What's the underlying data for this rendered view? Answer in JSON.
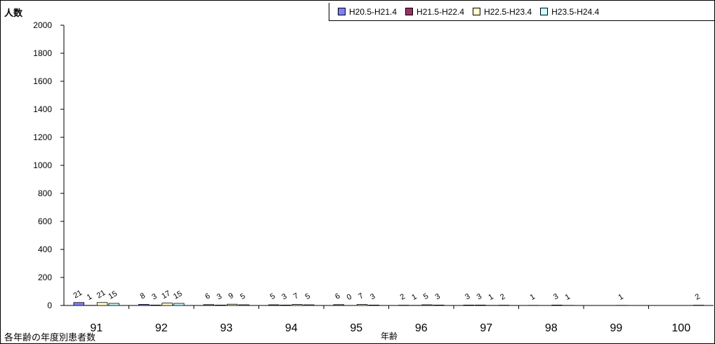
{
  "chart_data": {
    "type": "bar",
    "title": "",
    "ylabel": "人数",
    "xlabel": "年齢",
    "caption": "各年齢の年度別患者数",
    "ylim": [
      0,
      2000
    ],
    "y_ticks": [
      "0",
      "200",
      "400",
      "600",
      "800",
      "1000",
      "1200",
      "1400",
      "1600",
      "1800",
      "2000"
    ],
    "categories": [
      "91",
      "92",
      "93",
      "94",
      "95",
      "96",
      "97",
      "98",
      "99",
      "100"
    ],
    "legend_position": "top-right",
    "grid": false,
    "series": [
      {
        "name": "H20.5-H21.4",
        "color": "#8080ff",
        "values": [
          21,
          8,
          6,
          5,
          6,
          2,
          3,
          1,
          null,
          null
        ]
      },
      {
        "name": "H21.5-H22.4",
        "color": "#993366",
        "values": [
          1,
          3,
          3,
          3,
          0,
          1,
          3,
          null,
          null,
          null
        ]
      },
      {
        "name": "H22.5-H23.4",
        "color": "#ffffcc",
        "values": [
          21,
          17,
          9,
          7,
          7,
          5,
          1,
          3,
          1,
          null
        ]
      },
      {
        "name": "H23.5-H24.4",
        "color": "#ccffff",
        "values": [
          15,
          15,
          5,
          5,
          3,
          3,
          2,
          1,
          null,
          2
        ]
      }
    ]
  }
}
